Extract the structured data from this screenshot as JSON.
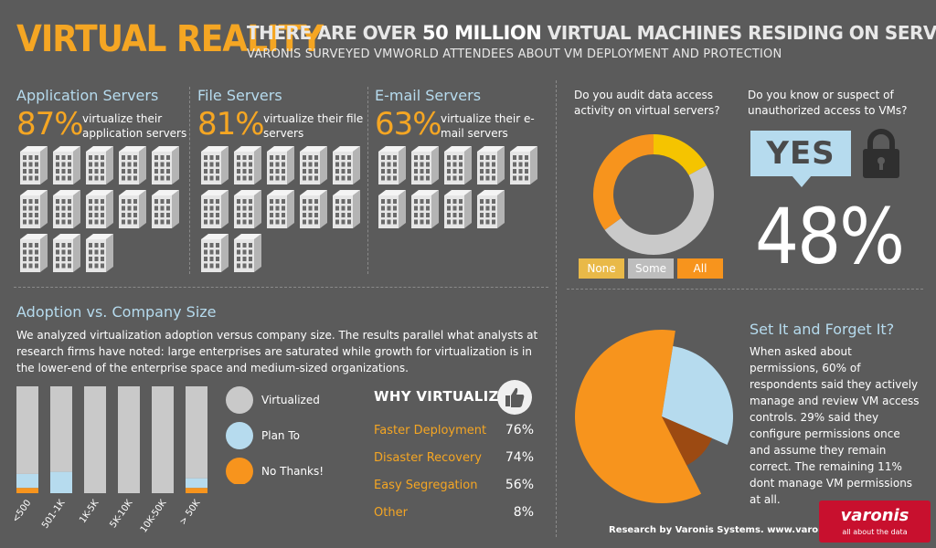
{
  "header": {
    "title": "VIRTUAL REALITY",
    "headline_pre": "THERE ARE OVER",
    "headline_bold": "50 MILLION",
    "headline_post": "VIRTUAL MACHINES RESIDING ON SERVERS",
    "subtitle": "VARONIS SURVEYED VMWORLD ATTENDEES ABOUT VM DEPLOYMENT AND PROTECTION"
  },
  "servers": [
    {
      "title": "Application Servers",
      "percent": "87%",
      "desc": "virtualize their application servers",
      "buildings": 13
    },
    {
      "title": "File Servers",
      "percent": "81%",
      "desc": "virtualize their file servers",
      "buildings": 12
    },
    {
      "title": "E-mail Servers",
      "percent": "63%",
      "desc": "virtualize their e-mail servers",
      "buildings": 9
    }
  ],
  "audit": {
    "question": "Do you audit data access activity on virtual servers?",
    "legend": [
      "None",
      "Some",
      "All"
    ]
  },
  "suspect": {
    "question": "Do you know or suspect of unauthorized access to VMs?",
    "answer": "YES",
    "percent": "48%"
  },
  "adoption": {
    "title": "Adoption vs. Company Size",
    "text": "We analyzed virtualization adoption versus company size. The results parallel what analysts at research firms have noted: large enterprises are saturated while growth for virtualization is in the lower-end of the enterprise space and medium-sized organizations.",
    "legend": [
      "Virtualized",
      "Plan To",
      "No Thanks!"
    ]
  },
  "why": {
    "title": "WHY VIRTUALIZE?",
    "rows": [
      {
        "label": "Faster Deployment",
        "value": "76%"
      },
      {
        "label": "Disaster Recovery",
        "value": "74%"
      },
      {
        "label": "Easy Segregation",
        "value": "56%"
      },
      {
        "label": "Other",
        "value": "8%"
      }
    ]
  },
  "permissions": {
    "title": "Set It and Forget It?",
    "text": "When asked about permissions, 60% of respondents said they actively manage and review VM access controls.  29% said they configure permissions once and assume they remain correct.  The remaining 11% dont manage VM permissions at all."
  },
  "footer": {
    "credit": "Research by Varonis Systems. www.varonis.com",
    "logo_text": "varonis",
    "logo_tagline": "all about the data"
  },
  "colors": {
    "orange": "#f7941d",
    "gold": "#f5c400",
    "lightgray": "#c9c9c9",
    "lightblue": "#b6dbee",
    "darkorange": "#9c4a12"
  },
  "chart_data": [
    {
      "type": "pie",
      "categories": [
        "None",
        "Some",
        "All"
      ],
      "values": [
        17,
        48,
        35
      ],
      "title": "Do you audit data access activity on virtual servers?",
      "style": "donut"
    },
    {
      "type": "bar",
      "categories": [
        "<500",
        "501-1K",
        "1K-5K",
        "5K-10K",
        "10K-50K",
        "> 50K"
      ],
      "series": [
        {
          "name": "Virtualized",
          "values": [
            82,
            80,
            100,
            100,
            100,
            86
          ]
        },
        {
          "name": "Plan To",
          "values": [
            13,
            20,
            0,
            0,
            0,
            9
          ]
        },
        {
          "name": "No Thanks!",
          "values": [
            5,
            0,
            0,
            0,
            0,
            5
          ]
        }
      ],
      "stacked": true,
      "ylim": [
        0,
        100
      ],
      "title": "Adoption vs. Company Size"
    },
    {
      "type": "pie",
      "categories": [
        "actively manage and review",
        "configure once",
        "dont manage"
      ],
      "values": [
        60,
        29,
        11
      ]
    }
  ]
}
